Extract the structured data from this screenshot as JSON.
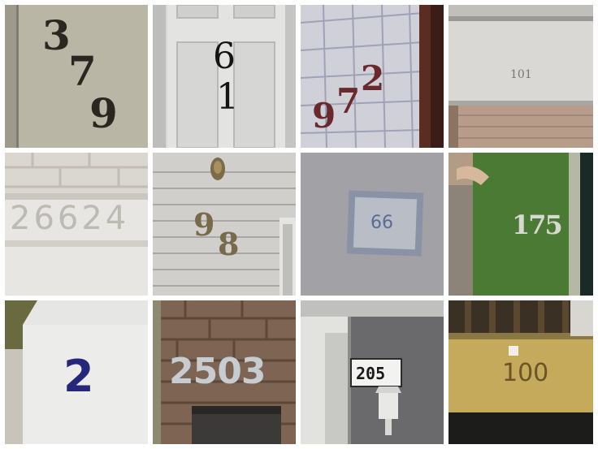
{
  "tiles": [
    {
      "id": "tile-1",
      "number": "379",
      "digits": [
        "3",
        "7",
        "9"
      ]
    },
    {
      "id": "tile-2",
      "number": "61",
      "digits": [
        "6",
        "1"
      ]
    },
    {
      "id": "tile-3",
      "number": "972",
      "digits": [
        "9",
        "7",
        "2"
      ]
    },
    {
      "id": "tile-4",
      "number": "101"
    },
    {
      "id": "tile-5",
      "number": "26624"
    },
    {
      "id": "tile-6",
      "number": "98",
      "digits": [
        "9",
        "8"
      ]
    },
    {
      "id": "tile-7",
      "number": "66"
    },
    {
      "id": "tile-8",
      "number": "175"
    },
    {
      "id": "tile-9",
      "number": "2"
    },
    {
      "id": "tile-10",
      "number": "2503"
    },
    {
      "id": "tile-11",
      "number": "205"
    },
    {
      "id": "tile-12",
      "number": "100"
    }
  ]
}
